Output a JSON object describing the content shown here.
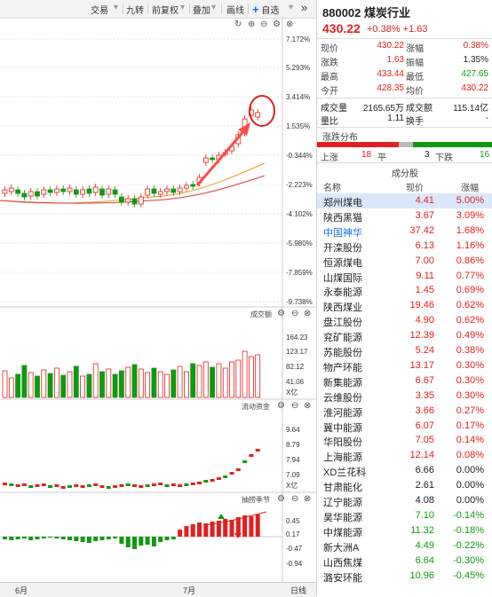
{
  "toolbar": {
    "items": [
      "交易",
      "九转",
      "前复权",
      "叠加",
      "画线"
    ],
    "add_label": "自选",
    "more_label": "»"
  },
  "price_panel": {
    "y_labels": [
      "7.172%",
      "5.293%",
      "3.414%",
      "1.535%",
      "-0.344%",
      "-2.223%",
      "-4.102%",
      "-5.980%",
      "-7.859%",
      "-9.738%"
    ]
  },
  "volume_panel": {
    "title": "成交额",
    "y_labels": [
      "164.23",
      "123.17",
      "82.12",
      "41.06",
      "X亿"
    ]
  },
  "fund_panel": {
    "title": "流动资金",
    "y_labels": [
      "9.64",
      "8.79",
      "7.94",
      "7.09",
      "X亿"
    ]
  },
  "season_panel": {
    "title": "抽捞季节",
    "y_labels": [
      "0.45",
      "0.17",
      "-0.47",
      "-0.94"
    ]
  },
  "dates": [
    "6月",
    "7月"
  ],
  "period_label": "日线",
  "header": {
    "code_name": "880002 煤炭行业",
    "price": "430.22",
    "change": "+0.38%  +1.63"
  },
  "quote": [
    {
      "k1": "现价",
      "v1": "430.22",
      "c1": "red",
      "k2": "涨幅",
      "v2": "0.38%",
      "c2": "red"
    },
    {
      "k1": "涨跌",
      "v1": "1.63",
      "c1": "red",
      "k2": "振幅",
      "v2": "1.35%",
      "c2": "black"
    },
    {
      "k1": "最高",
      "v1": "433.44",
      "c1": "red",
      "k2": "最低",
      "v2": "427.65",
      "c2": "green"
    },
    {
      "k1": "今开",
      "v1": "428.35",
      "c1": "red",
      "k2": "均价",
      "v2": "430.22",
      "c2": "red"
    }
  ],
  "stats": [
    {
      "k1": "成交量",
      "v1": "2165.65万",
      "k2": "成交额",
      "v2": "115.14亿"
    },
    {
      "k1": "量比",
      "v1": "1.11",
      "k2": "换手",
      "v2": "-"
    }
  ],
  "distribution": {
    "title": "涨跌分布",
    "up_label": "上涨",
    "up_count": "18",
    "flat_label": "平",
    "flat_count": "3",
    "down_label": "下跌",
    "down_count": "16"
  },
  "constituents": {
    "title": "成分股",
    "headers": [
      "名称",
      "现价",
      "涨幅"
    ],
    "rows": [
      {
        "name": "郑州煤电",
        "price": "4.41",
        "pct": "5.00%",
        "color": "red",
        "highlight": true
      },
      {
        "name": "陕西黑猫",
        "price": "3.67",
        "pct": "3.09%",
        "color": "red"
      },
      {
        "name": "中国神华",
        "price": "37.42",
        "pct": "1.68%",
        "color": "red",
        "blue": true
      },
      {
        "name": "开滦股份",
        "price": "6.13",
        "pct": "1.16%",
        "color": "red"
      },
      {
        "name": "恒源煤电",
        "price": "7.00",
        "pct": "0.86%",
        "color": "red"
      },
      {
        "name": "山煤国际",
        "price": "9.11",
        "pct": "0.77%",
        "color": "red"
      },
      {
        "name": "永泰能源",
        "price": "1.45",
        "pct": "0.69%",
        "color": "red"
      },
      {
        "name": "陕西煤业",
        "price": "19.46",
        "pct": "0.62%",
        "color": "red"
      },
      {
        "name": "盘江股份",
        "price": "4.90",
        "pct": "0.62%",
        "color": "red"
      },
      {
        "name": "兖矿能源",
        "price": "12.39",
        "pct": "0.49%",
        "color": "red"
      },
      {
        "name": "苏能股份",
        "price": "5.24",
        "pct": "0.38%",
        "color": "red"
      },
      {
        "name": "物产环能",
        "price": "13.17",
        "pct": "0.30%",
        "color": "red"
      },
      {
        "name": "新集能源",
        "price": "6.67",
        "pct": "0.30%",
        "color": "red"
      },
      {
        "name": "云维股份",
        "price": "3.35",
        "pct": "0.30%",
        "color": "red"
      },
      {
        "name": "淮河能源",
        "price": "3.66",
        "pct": "0.27%",
        "color": "red"
      },
      {
        "name": "冀中能源",
        "price": "6.07",
        "pct": "0.17%",
        "color": "red"
      },
      {
        "name": "华阳股份",
        "price": "7.05",
        "pct": "0.14%",
        "color": "red"
      },
      {
        "name": "上海能源",
        "price": "12.14",
        "pct": "0.08%",
        "color": "red"
      },
      {
        "name": "XD兰花科",
        "price": "6.66",
        "pct": "0.00%",
        "color": "black"
      },
      {
        "name": "甘肃能化",
        "price": "2.61",
        "pct": "0.00%",
        "color": "black"
      },
      {
        "name": "辽宁能源",
        "price": "4.08",
        "pct": "0.00%",
        "color": "black"
      },
      {
        "name": "昊华能源",
        "price": "7.10",
        "pct": "-0.14%",
        "color": "green"
      },
      {
        "name": "中煤能源",
        "price": "11.32",
        "pct": "-0.18%",
        "color": "green"
      },
      {
        "name": "新大洲A",
        "price": "4.49",
        "pct": "-0.22%",
        "color": "green"
      },
      {
        "name": "山西焦煤",
        "price": "6.64",
        "pct": "-0.30%",
        "color": "green"
      },
      {
        "name": "潞安环能",
        "price": "10.96",
        "pct": "-0.45%",
        "color": "green"
      }
    ]
  },
  "colors": {
    "up": "#e02020",
    "down": "#119911",
    "accent": "#1a6fd6"
  }
}
